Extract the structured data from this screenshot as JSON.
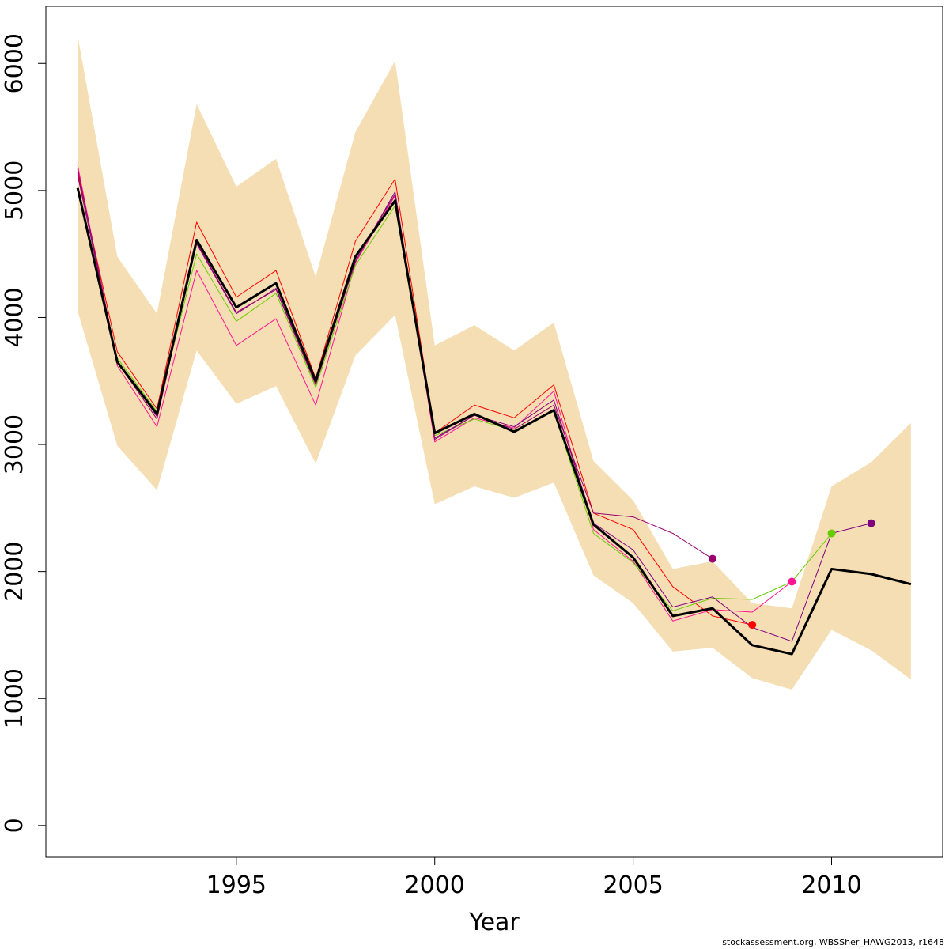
{
  "chart_data": {
    "type": "line",
    "xlabel": "Year",
    "ylabel": "",
    "xlim": [
      1990.2,
      2012.8
    ],
    "ylim": [
      -250,
      6450
    ],
    "x_ticks": [
      1995,
      2000,
      2005,
      2010
    ],
    "y_ticks": [
      0,
      1000,
      2000,
      3000,
      4000,
      5000,
      6000
    ],
    "grid": false,
    "band": {
      "color": "#F5DEB3",
      "x": [
        1991,
        1992,
        1993,
        1994,
        1995,
        1996,
        1997,
        1998,
        1999,
        2000,
        2001,
        2002,
        2003,
        2004,
        2005,
        2006,
        2007,
        2008,
        2009,
        2010,
        2011,
        2012
      ],
      "lower": [
        4050,
        2990,
        2640,
        3740,
        3320,
        3460,
        2850,
        3700,
        4020,
        2530,
        2670,
        2580,
        2700,
        1970,
        1750,
        1370,
        1400,
        1160,
        1070,
        1540,
        1380,
        1150
      ],
      "upper": [
        6220,
        4480,
        4030,
        5680,
        5030,
        5250,
        4320,
        5460,
        6020,
        3780,
        3940,
        3740,
        3960,
        2870,
        2560,
        2020,
        2080,
        1750,
        1710,
        2670,
        2860,
        3170
      ]
    },
    "series": [
      {
        "color": "#000000",
        "width": 3,
        "x": [
          1991,
          1992,
          1993,
          1994,
          1995,
          1996,
          1997,
          1998,
          1999,
          2000,
          2001,
          2002,
          2003,
          2004,
          2005,
          2006,
          2007,
          2008,
          2009,
          2010,
          2011,
          2012
        ],
        "values": [
          5020,
          3650,
          3240,
          4610,
          4080,
          4270,
          3500,
          4480,
          4920,
          3090,
          3240,
          3100,
          3270,
          2370,
          2110,
          1650,
          1710,
          1420,
          1350,
          2020,
          1980,
          1900
        ]
      },
      {
        "color": "#FF0000",
        "width": 1,
        "end_marker": true,
        "x": [
          1991,
          1992,
          1993,
          1994,
          1995,
          1996,
          1997,
          1998,
          1999,
          2000,
          2001,
          2002,
          2003,
          2004,
          2005,
          2006,
          2007,
          2008
        ],
        "values": [
          5140,
          3730,
          3280,
          4750,
          4160,
          4370,
          3520,
          4600,
          5090,
          3090,
          3310,
          3210,
          3470,
          2460,
          2330,
          1880,
          1650,
          1580
        ]
      },
      {
        "color": "#FF1493",
        "width": 1,
        "end_marker": true,
        "x": [
          1991,
          1992,
          1993,
          1994,
          1995,
          1996,
          1997,
          1998,
          1999,
          2000,
          2001,
          2002,
          2003,
          2004,
          2005,
          2006,
          2007,
          2008,
          2009
        ],
        "values": [
          5200,
          3620,
          3140,
          4370,
          3780,
          3990,
          3310,
          4430,
          4960,
          3020,
          3210,
          3130,
          3420,
          2330,
          2080,
          1610,
          1700,
          1680,
          1920
        ]
      },
      {
        "color": "#66CC00",
        "width": 1,
        "end_marker": true,
        "x": [
          1991,
          1992,
          1993,
          1994,
          1995,
          1996,
          1997,
          1998,
          1999,
          2000,
          2001,
          2002,
          2003,
          2004,
          2005,
          2006,
          2007,
          2008,
          2009,
          2010
        ],
        "values": [
          5000,
          3680,
          3260,
          4500,
          3970,
          4190,
          3450,
          4410,
          4880,
          3070,
          3200,
          3110,
          3260,
          2300,
          2070,
          1690,
          1790,
          1780,
          1920,
          2300
        ]
      },
      {
        "color": "#800080",
        "width": 1,
        "end_marker": true,
        "x": [
          1991,
          1992,
          1993,
          1994,
          1995,
          1996,
          1997,
          1998,
          1999,
          2000,
          2001,
          2002,
          2003,
          2004,
          2005,
          2006,
          2007,
          2008,
          2009,
          2010,
          2011
        ],
        "values": [
          5120,
          3660,
          3220,
          4580,
          4030,
          4230,
          3480,
          4440,
          4990,
          3050,
          3230,
          3140,
          3350,
          2380,
          2170,
          1720,
          1800,
          1560,
          1450,
          2300,
          2380
        ]
      },
      {
        "color": "#9B0070",
        "width": 1,
        "end_marker": true,
        "x": [
          1991,
          1992,
          1993,
          1994,
          1995,
          1996,
          1997,
          1998,
          1999,
          2000,
          2001,
          2002,
          2003,
          2004,
          2005,
          2006,
          2007
        ],
        "values": [
          5170,
          3650,
          3200,
          4590,
          4040,
          4220,
          3470,
          4460,
          4970,
          3040,
          3230,
          3120,
          3310,
          2460,
          2430,
          2300,
          2100
        ]
      }
    ]
  },
  "footer": {
    "credit": "stockassessment.org, WBSSher_HAWG2013, r1648"
  }
}
